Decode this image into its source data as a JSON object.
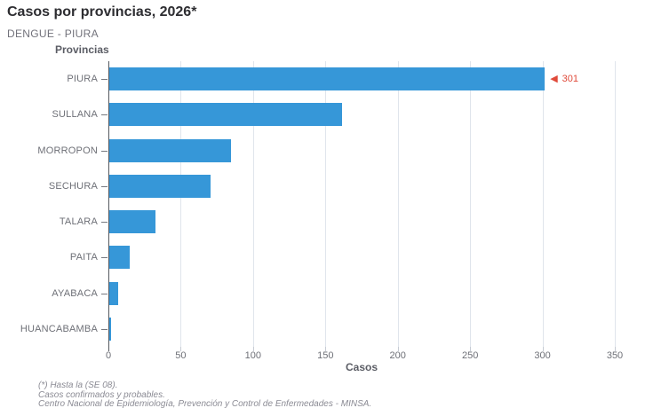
{
  "header": {
    "title": "Casos por provincias, 2026*",
    "subtitle": "DENGUE - PIURA"
  },
  "chart_data": {
    "type": "bar",
    "orientation": "horizontal",
    "title": "Casos por provincias, 2026*",
    "subtitle": "DENGUE - PIURA",
    "ylabel": "Provincias",
    "xlabel": "Casos",
    "categories": [
      "PIURA",
      "SULLANA",
      "MORROPON",
      "SECHURA",
      "TALARA",
      "PAITA",
      "AYABACA",
      "HUANCABAMBA"
    ],
    "values": [
      301,
      161,
      84,
      70,
      32,
      14,
      6,
      1
    ],
    "xlim": [
      0,
      350
    ],
    "xticks": [
      0,
      50,
      100,
      150,
      200,
      250,
      300,
      350
    ],
    "grid": "vertical-only",
    "legend": "none",
    "bar_color": "#3697d8",
    "annotation": {
      "category": "PIURA",
      "marker": "left-arrow",
      "text": "301",
      "color": "#e04a3a"
    }
  },
  "footnotes": [
    "(*) Hasta la (SE 08).",
    "Casos confirmados y probables.",
    "Centro Nacional de Epidemiología, Prevención y Control de Enfermedades - MINSA."
  ]
}
